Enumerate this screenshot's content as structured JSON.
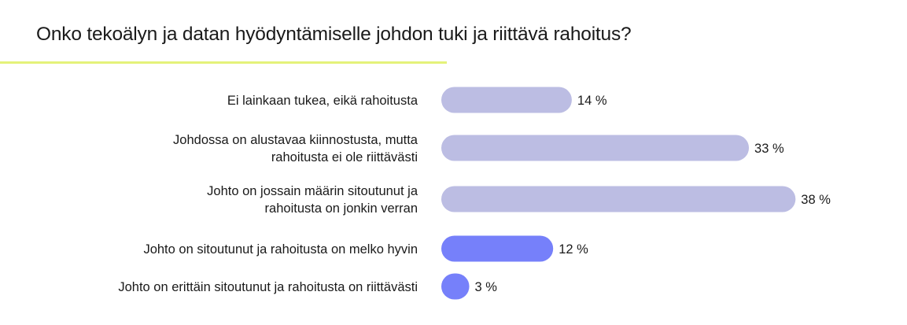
{
  "title": "Onko tekoälyn ja datan hyödyntämiselle johdon tuki ja riittävä rahoitus?",
  "colors": {
    "accent_line": "#e4f27a",
    "bar_light": "#bcbde3",
    "bar_strong": "#7680fa",
    "text": "#1a1a1a"
  },
  "chart_data": {
    "type": "bar",
    "orientation": "horizontal",
    "title": "Onko tekoälyn ja datan hyödyntämiselle johdon tuki ja riittävä rahoitus?",
    "xlabel": "",
    "ylabel": "",
    "categories": [
      [
        "Ei lainkaan tukea, eikä rahoitusta"
      ],
      [
        "Johdossa on alustavaa kiinnostusta, mutta",
        "rahoitusta ei ole riittävästi"
      ],
      [
        "Johto on jossain määrin sitoutunut ja",
        "rahoitusta on jonkin verran"
      ],
      [
        "Johto on sitoutunut ja rahoitusta on melko hyvin"
      ],
      [
        "Johto on erittäin sitoutunut ja rahoitusta on riittävästi"
      ]
    ],
    "values": [
      14,
      33,
      38,
      12,
      3
    ],
    "value_labels": [
      "14 %",
      "33 %",
      "38 %",
      "12 %",
      "3 %"
    ],
    "bar_colors": [
      "#bcbde3",
      "#bcbde3",
      "#bcbde3",
      "#7680fa",
      "#7680fa"
    ],
    "unit": "%",
    "grid": false,
    "legend": "none"
  }
}
